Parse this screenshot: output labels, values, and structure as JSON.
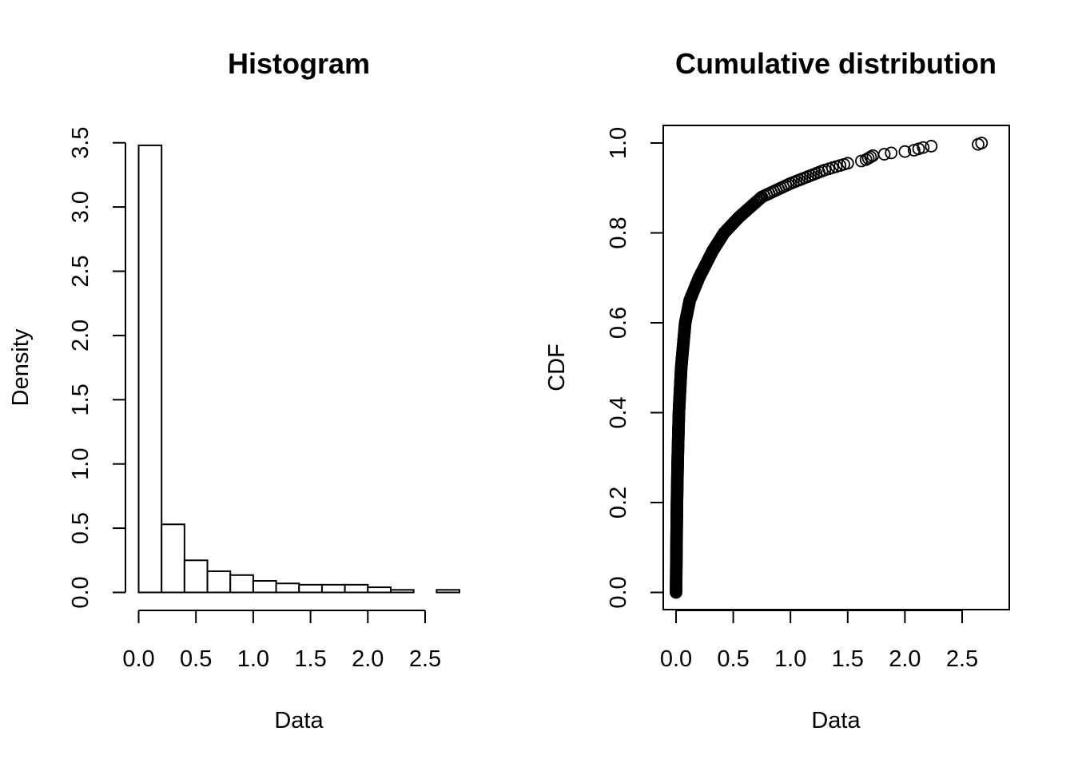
{
  "chart_data": [
    {
      "type": "bar",
      "title": "Histogram",
      "xlabel": "Data",
      "ylabel": "Density",
      "bin_edges": [
        0,
        0.2,
        0.4,
        0.6,
        0.8,
        1.0,
        1.2,
        1.4,
        1.6,
        1.8,
        2.0,
        2.2,
        2.4,
        2.6,
        2.8
      ],
      "values": [
        3.48,
        0.53,
        0.25,
        0.165,
        0.135,
        0.09,
        0.07,
        0.06,
        0.06,
        0.06,
        0.04,
        0.02,
        0.0,
        0.02
      ],
      "xlim": [
        0,
        2.8
      ],
      "ylim": [
        0,
        3.5
      ],
      "xticks": [
        "0.0",
        "0.5",
        "1.0",
        "1.5",
        "2.0",
        "2.5"
      ],
      "yticks": [
        "0.0",
        "0.5",
        "1.0",
        "1.5",
        "2.0",
        "2.5",
        "3.0",
        "3.5"
      ],
      "grid": false,
      "box": false
    },
    {
      "type": "scatter",
      "title": "Cumulative distribution",
      "xlabel": "Data",
      "ylabel": "CDF",
      "marker": "open-circle",
      "xlim": [
        0,
        2.66
      ],
      "ylim": [
        0,
        1
      ],
      "xticks": [
        "0.0",
        "0.5",
        "1.0",
        "1.5",
        "2.0",
        "2.5"
      ],
      "yticks": [
        "0.0",
        "0.2",
        "0.4",
        "0.6",
        "0.8",
        "1.0"
      ],
      "grid": false,
      "box": true,
      "curve_knots": [
        [
          0.0,
          0.0
        ],
        [
          0.004,
          0.1
        ],
        [
          0.008,
          0.2
        ],
        [
          0.015,
          0.3
        ],
        [
          0.025,
          0.4
        ],
        [
          0.045,
          0.5
        ],
        [
          0.08,
          0.6
        ],
        [
          0.12,
          0.65
        ],
        [
          0.2,
          0.7
        ],
        [
          0.32,
          0.76
        ],
        [
          0.42,
          0.8
        ],
        [
          0.55,
          0.835
        ],
        [
          0.75,
          0.88
        ],
        [
          1.0,
          0.91
        ],
        [
          1.3,
          0.94
        ],
        [
          1.5,
          0.955
        ]
      ],
      "tail_points": [
        [
          1.62,
          0.96
        ],
        [
          1.66,
          0.963
        ],
        [
          1.68,
          0.966
        ],
        [
          1.7,
          0.969
        ],
        [
          1.72,
          0.972
        ],
        [
          1.82,
          0.975
        ],
        [
          1.88,
          0.978
        ],
        [
          2.0,
          0.981
        ],
        [
          2.08,
          0.984
        ],
        [
          2.12,
          0.987
        ],
        [
          2.16,
          0.99
        ],
        [
          2.23,
          0.993
        ],
        [
          2.64,
          0.997
        ],
        [
          2.67,
          1.0
        ]
      ]
    }
  ]
}
